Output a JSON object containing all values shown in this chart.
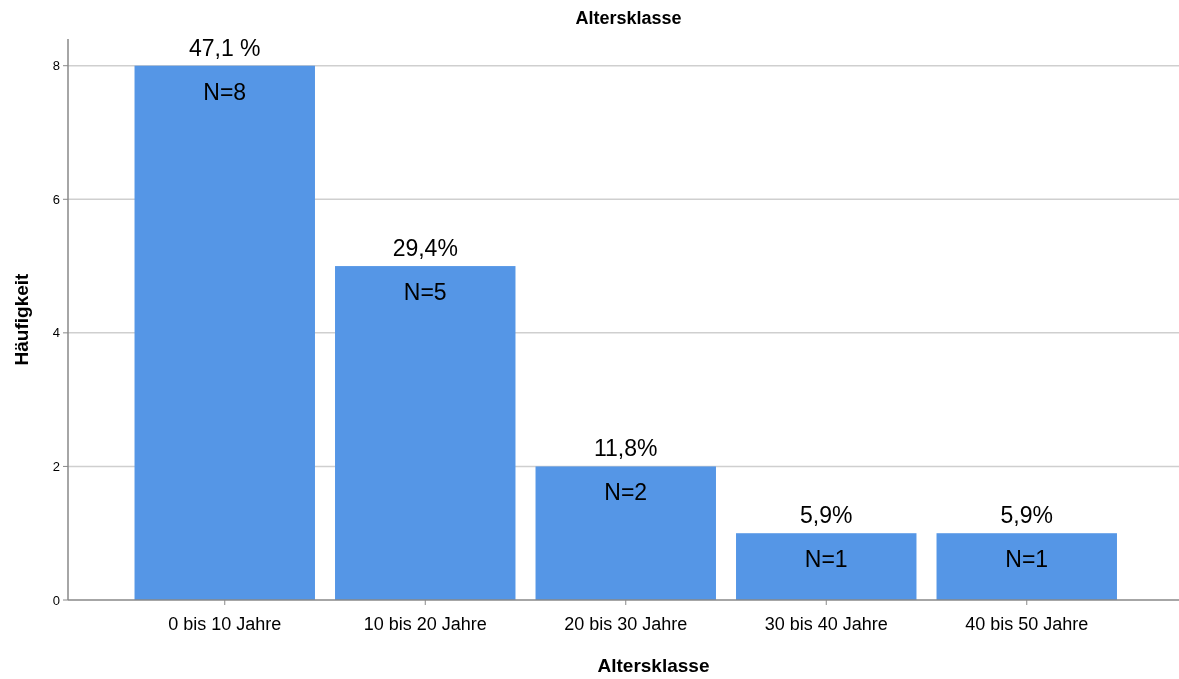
{
  "chart_data": {
    "type": "bar",
    "title": "Altersklasse",
    "xlabel": "Altersklasse",
    "ylabel": "Häufigkeit",
    "categories": [
      "0 bis 10 Jahre",
      "10 bis 20 Jahre",
      "20 bis 30 Jahre",
      "30 bis 40 Jahre",
      "40 bis 50 Jahre"
    ],
    "values": [
      8,
      5,
      2,
      1,
      1
    ],
    "value_labels": [
      "N=8",
      "N=5",
      "N=2",
      "N=1",
      "N=1"
    ],
    "color": "#5596e6",
    "ylim": [
      0,
      8.4
    ],
    "yticks": [
      0,
      2,
      4,
      6,
      8
    ],
    "grid": "y",
    "annotations": [
      {
        "text": "47,1 %",
        "x": "0 bis 10 Jahre",
        "y": 8
      },
      {
        "text": "29,4%",
        "x": "10 bis 20 Jahre",
        "y": 5
      },
      {
        "text": "11,8%",
        "x": "20 bis 30 Jahre",
        "y": 2
      },
      {
        "text": "5,9%",
        "x": "30 bis 40 Jahre",
        "y": 1
      },
      {
        "text": "5,9%",
        "x": "40 bis 50 Jahre",
        "y": 1
      }
    ]
  }
}
